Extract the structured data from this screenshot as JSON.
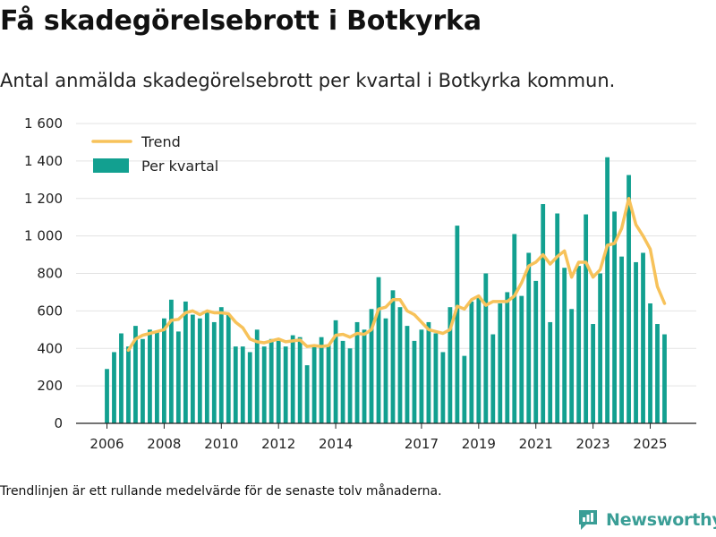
{
  "title": "Få skadegörelsebrott i Botkyrka",
  "subtitle": "Antal anmälda skadegörelsebrott per kvartal i Botkyrka kommun.",
  "footnote": "Trendlinjen är ett rullande medelvärde för de senaste tolv månaderna.",
  "brand": {
    "name": "Newsworthy",
    "icon": "newsworthy-logo-icon"
  },
  "colors": {
    "bar": "#12a090",
    "trend": "#f7c25a",
    "grid": "#e3e3e3",
    "axis": "#222222"
  },
  "chart_data": {
    "type": "bar",
    "title": "Få skadegörelsebrott i Botkyrka",
    "xlabel": "",
    "ylabel": "",
    "ylim": [
      0,
      1600
    ],
    "y_ticks": [
      0,
      200,
      400,
      600,
      800,
      1000,
      1200,
      1400,
      1600
    ],
    "y_tick_labels": [
      "0",
      "200",
      "400",
      "600",
      "800",
      "1 000",
      "1 200",
      "1 400",
      "1 600"
    ],
    "x_ticks": [
      {
        "label": "2006",
        "index": 0
      },
      {
        "label": "2008",
        "index": 8
      },
      {
        "label": "2010",
        "index": 16
      },
      {
        "label": "2012",
        "index": 24
      },
      {
        "label": "2014",
        "index": 32
      },
      {
        "label": "2017",
        "index": 44
      },
      {
        "label": "2019",
        "index": 52
      },
      {
        "label": "2021",
        "index": 60
      },
      {
        "label": "2023",
        "index": 68
      },
      {
        "label": "2025",
        "index": 76
      }
    ],
    "legend": {
      "position": "top-left",
      "entries": [
        "Trend",
        "Per kvartal"
      ]
    },
    "series": [
      {
        "name": "Per kvartal",
        "type": "bar",
        "values": [
          290,
          380,
          480,
          410,
          520,
          450,
          500,
          490,
          560,
          660,
          490,
          650,
          580,
          560,
          600,
          540,
          620,
          580,
          410,
          410,
          380,
          500,
          410,
          450,
          440,
          410,
          470,
          460,
          310,
          420,
          460,
          420,
          550,
          440,
          400,
          540,
          500,
          610,
          780,
          560,
          710,
          620,
          520,
          440,
          500,
          540,
          480,
          380,
          620,
          1055,
          360,
          650,
          680,
          800,
          475,
          640,
          700,
          1010,
          680,
          910,
          760,
          1170,
          540,
          1120,
          830,
          610,
          840,
          1115,
          530,
          800,
          1420,
          1130,
          890,
          1325,
          860,
          910,
          640,
          530,
          475
        ]
      },
      {
        "name": "Trend",
        "type": "line",
        "values": [
          null,
          null,
          null,
          390,
          450,
          470,
          480,
          490,
          500,
          550,
          555,
          590,
          600,
          580,
          600,
          590,
          590,
          585,
          540,
          510,
          450,
          435,
          430,
          440,
          450,
          435,
          440,
          445,
          410,
          415,
          410,
          415,
          470,
          475,
          460,
          480,
          475,
          500,
          610,
          620,
          660,
          660,
          600,
          580,
          540,
          500,
          490,
          480,
          500,
          625,
          610,
          660,
          680,
          630,
          650,
          650,
          650,
          680,
          750,
          840,
          860,
          900,
          850,
          890,
          920,
          780,
          860,
          860,
          780,
          820,
          950,
          960,
          1040,
          1200,
          1060,
          1000,
          930,
          730,
          640
        ]
      }
    ]
  }
}
